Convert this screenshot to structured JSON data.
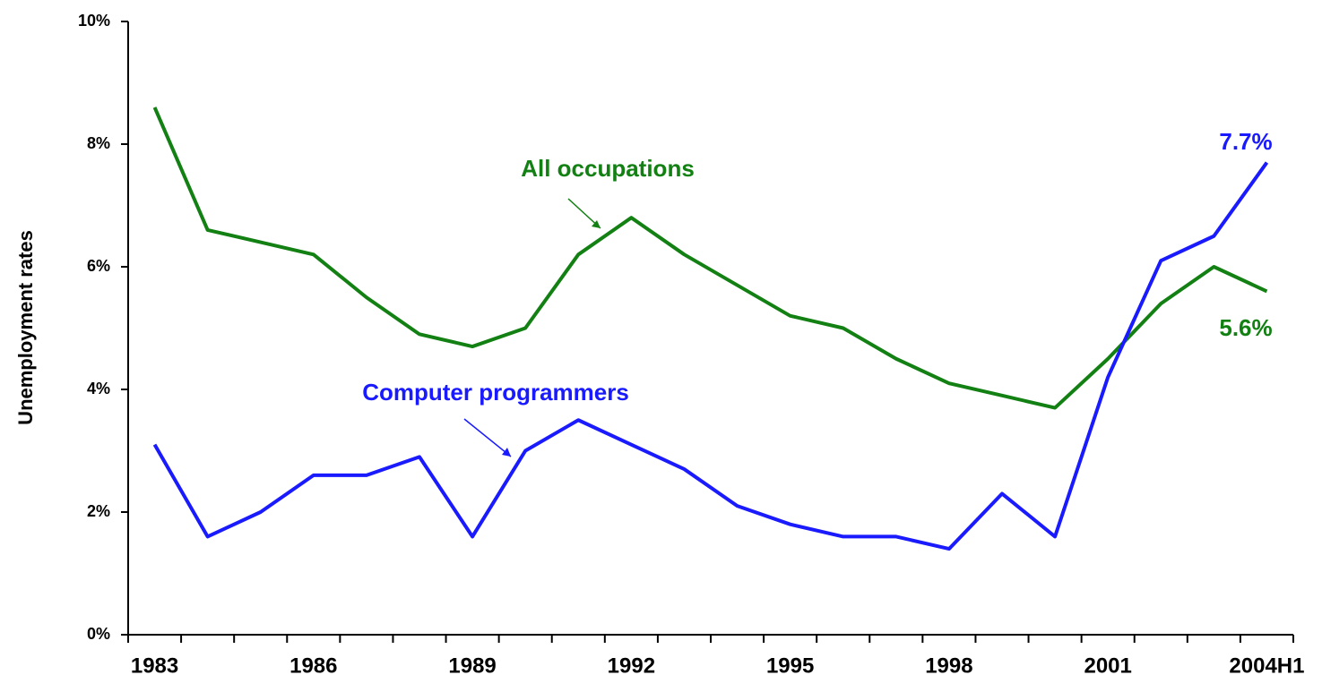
{
  "chart_data": {
    "type": "line",
    "y_label": "Unemployment rates",
    "categories": [
      "1983",
      null,
      null,
      "1986",
      null,
      null,
      "1989",
      null,
      null,
      "1992",
      null,
      null,
      "1995",
      null,
      null,
      "1998",
      null,
      null,
      "2001",
      null,
      null,
      "2004H1"
    ],
    "series": [
      {
        "name": "All occupations",
        "color": "#138013",
        "values": [
          8.6,
          6.6,
          6.4,
          6.2,
          5.5,
          4.9,
          4.7,
          5.0,
          6.2,
          6.8,
          6.2,
          5.7,
          5.2,
          5.0,
          4.5,
          4.1,
          3.9,
          3.7,
          4.5,
          5.4,
          6.0,
          5.6
        ],
        "value_labels": [
          null,
          null,
          null,
          null,
          null,
          null,
          null,
          null,
          null,
          null,
          null,
          null,
          null,
          null,
          null,
          null,
          null,
          null,
          null,
          null,
          null,
          "5.6%"
        ]
      },
      {
        "name": "Computer programmers",
        "color": "#1a1aff",
        "values": [
          3.1,
          1.6,
          2.0,
          2.6,
          2.6,
          2.9,
          1.6,
          3.0,
          3.5,
          3.1,
          2.7,
          2.1,
          1.8,
          1.6,
          1.6,
          1.4,
          2.3,
          1.6,
          4.2,
          6.1,
          6.5,
          7.7
        ],
        "value_labels": [
          null,
          null,
          null,
          null,
          null,
          null,
          null,
          null,
          null,
          null,
          null,
          null,
          null,
          null,
          null,
          null,
          null,
          null,
          null,
          null,
          null,
          "7.7%"
        ]
      }
    ],
    "ylim": [
      0,
      10
    ],
    "yticks": [
      {
        "value": 0,
        "label": "0%"
      },
      {
        "value": 2,
        "label": "2%"
      },
      {
        "value": 4,
        "label": "4%"
      },
      {
        "value": 6,
        "label": "6%"
      },
      {
        "value": 8,
        "label": "8%"
      },
      {
        "value": 10,
        "label": "10%"
      }
    ]
  }
}
